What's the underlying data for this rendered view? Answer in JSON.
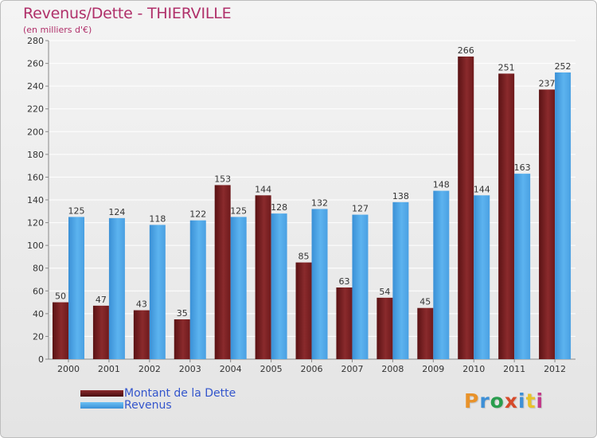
{
  "colors": {
    "title": "#b0306a",
    "dette": "#7a1e20",
    "revenus": "#4aa3e6",
    "legend_text": "#3355cc"
  },
  "logo": {
    "text": "Proxiti",
    "letter_colors": [
      "#e8922a",
      "#3d8fd6",
      "#2a9d4e",
      "#d64a2a",
      "#3d8fd6",
      "#e8c22a",
      "#c23a8a"
    ]
  },
  "chart_data": {
    "type": "bar",
    "title": "Revenus/Dette - THIERVILLE",
    "subtitle": "(en milliers d'€)",
    "xlabel": "",
    "ylabel": "",
    "ylim": [
      0,
      280
    ],
    "yticks": [
      0,
      20,
      40,
      60,
      80,
      100,
      120,
      140,
      160,
      180,
      200,
      220,
      240,
      260,
      280
    ],
    "grid": true,
    "legend_position": "bottom-left",
    "categories": [
      "2000",
      "2001",
      "2002",
      "2003",
      "2004",
      "2005",
      "2006",
      "2007",
      "2008",
      "2009",
      "2010",
      "2011",
      "2012"
    ],
    "series": [
      {
        "name": "Montant de la Dette",
        "values": [
          50,
          47,
          43,
          35,
          153,
          144,
          85,
          63,
          54,
          45,
          266,
          251,
          237
        ]
      },
      {
        "name": "Revenus",
        "values": [
          125,
          124,
          118,
          122,
          125,
          128,
          132,
          127,
          138,
          148,
          144,
          163,
          252
        ]
      }
    ]
  }
}
